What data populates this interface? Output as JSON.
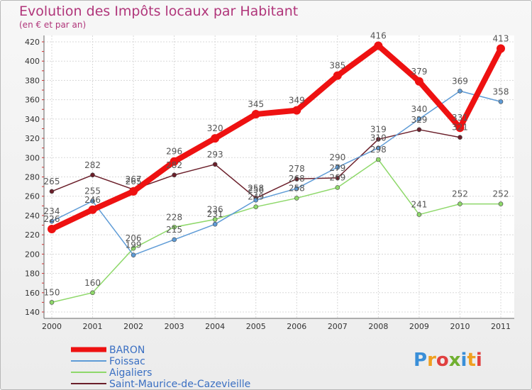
{
  "chart_data": {
    "type": "line",
    "title": "Evolution des Impôts locaux par Habitant",
    "subtitle": "(en € et par an)",
    "xlabel": "",
    "ylabel": "",
    "categories": [
      "2000",
      "2001",
      "2002",
      "2003",
      "2004",
      "2005",
      "2006",
      "2007",
      "2008",
      "2009",
      "2010",
      "2011"
    ],
    "ylim": [
      140,
      420
    ],
    "yticks": [
      140,
      160,
      180,
      200,
      220,
      240,
      260,
      280,
      300,
      320,
      340,
      360,
      380,
      400,
      420
    ],
    "grid": true,
    "legend_position": "bottom-left",
    "series": [
      {
        "name": "BARON",
        "color": "#ee1111",
        "values": [
          226,
          246,
          265,
          296,
          320,
          345,
          349,
          385,
          416,
          379,
          331,
          413
        ]
      },
      {
        "name": "Foissac",
        "color": "#5e9bd6",
        "values": [
          234,
          255,
          199,
          215,
          231,
          256,
          268,
          290,
          310,
          340,
          369,
          358
        ]
      },
      {
        "name": "Aigaliers",
        "color": "#8ed86a",
        "values": [
          150,
          160,
          206,
          228,
          236,
          249,
          258,
          269,
          298,
          241,
          252,
          252
        ]
      },
      {
        "name": "Saint-Maurice-de-Cazevieille",
        "color": "#6b1f2a",
        "values": [
          265,
          282,
          267,
          282,
          293,
          258,
          278,
          279,
          319,
          329,
          321,
          null
        ]
      }
    ]
  },
  "logo": {
    "text": "Proxiti"
  }
}
